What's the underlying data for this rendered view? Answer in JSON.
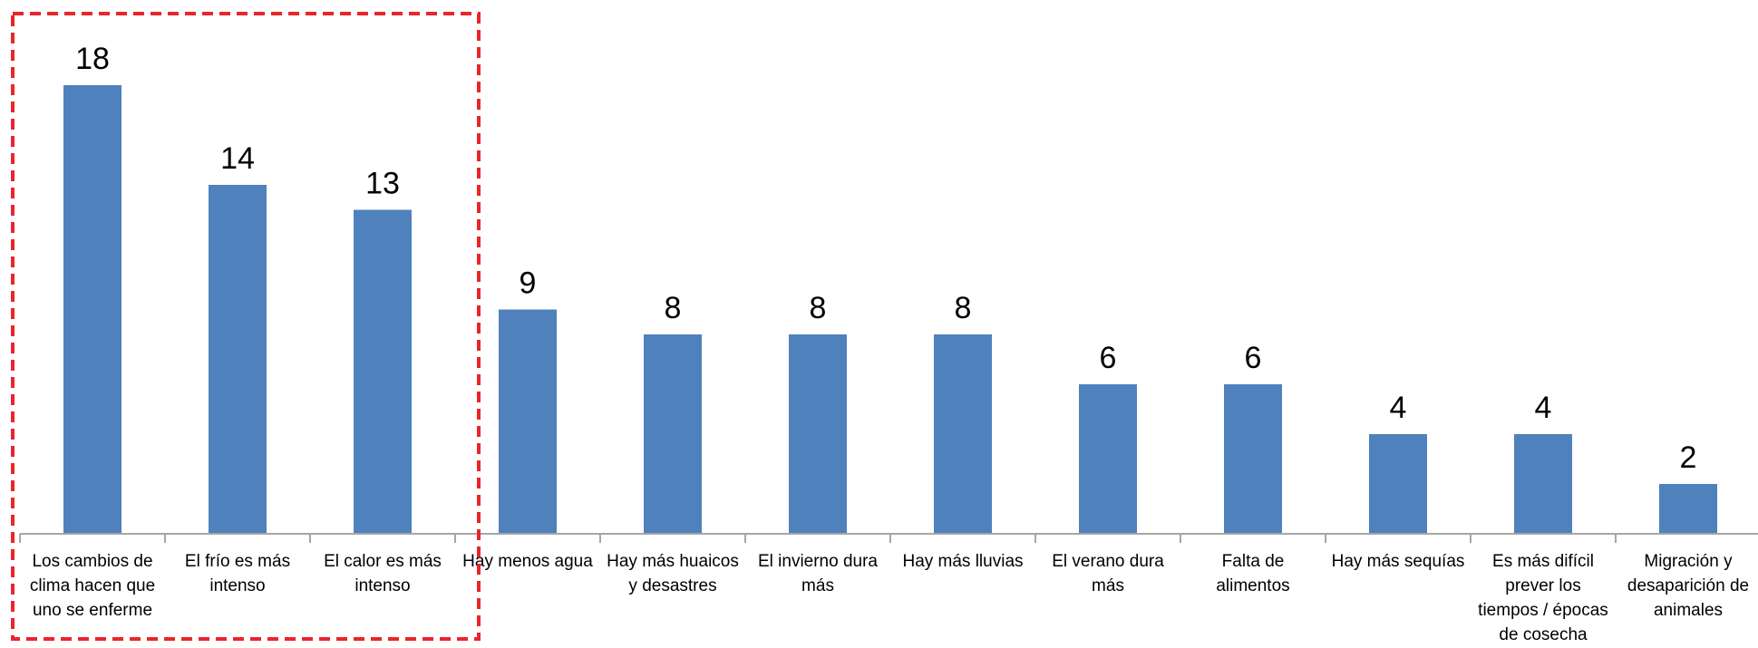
{
  "chart_data": {
    "type": "bar",
    "title": "",
    "xlabel": "",
    "ylabel": "",
    "grid": false,
    "legend": "none",
    "categories": [
      "Los cambios de clima hacen que uno se enferme",
      "El frío es más intenso",
      "El calor es más intenso",
      "Hay menos agua",
      "Hay más huaicos y desastres",
      "El invierno dura más",
      "Hay más lluvias",
      "El verano dura más",
      "Falta de alimentos",
      "Hay más sequías",
      "Es más difícil prever los tiempos / épocas de cosecha",
      "Migración y desaparición de animales"
    ],
    "category_lines": [
      [
        "Los cambios de",
        "clima hacen que",
        "uno se enferme"
      ],
      [
        "El frío es más",
        "intenso"
      ],
      [
        "El calor es más",
        "intenso"
      ],
      [
        "Hay menos agua"
      ],
      [
        "Hay más huaicos",
        "y desastres"
      ],
      [
        "El invierno dura",
        "más"
      ],
      [
        "Hay más lluvias"
      ],
      [
        "El verano dura",
        "más"
      ],
      [
        "Falta de",
        "alimentos"
      ],
      [
        "Hay más sequías"
      ],
      [
        "Es más difícil",
        "prever los",
        "tiempos / épocas",
        "de cosecha"
      ],
      [
        "Migración y",
        "desaparición de",
        "animales"
      ]
    ],
    "values": [
      18,
      14,
      13,
      9,
      8,
      8,
      8,
      6,
      6,
      4,
      4,
      2
    ],
    "data_labels": [
      "18",
      "14",
      "13",
      "9",
      "8",
      "8",
      "8",
      "6",
      "6",
      "4",
      "4",
      "2"
    ],
    "highlighted_categories": [
      "Los cambios de clima hacen que uno se enferme",
      "El frío es más intenso",
      "El calor es más intenso"
    ],
    "ylim": [
      0,
      19
    ]
  },
  "colors": {
    "bar": "#4f81bd",
    "axis": "#a6a6a6",
    "highlight_box": "#e8262b",
    "label_text": "#000000"
  }
}
